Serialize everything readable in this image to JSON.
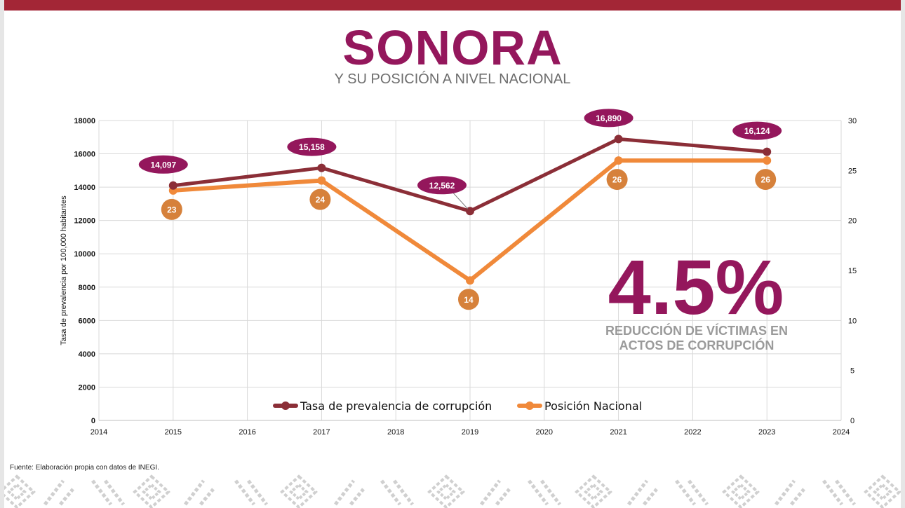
{
  "header": {
    "title": "SONORA",
    "subtitle": "Y SU POSICIÓN A NIVEL NACIONAL"
  },
  "colors": {
    "top_bar": "#a32636",
    "title": "#94175c",
    "prevalence_line": "#8b2e37",
    "position_line": "#f0893a",
    "prevalence_badge": "#94175c",
    "position_badge": "#d6813b",
    "highlight_number": "#94175c",
    "highlight_text": "#9a9a9a"
  },
  "highlight": {
    "value": "4.5%",
    "caption_line1": "REDUCCIÓN DE VÍCTIMAS EN",
    "caption_line2": "ACTOS DE CORRUPCIÓN"
  },
  "footer": {
    "source": "Fuente: Elaboración propia con datos de INEGI."
  },
  "chart_data": {
    "type": "line",
    "title": "",
    "xlabel": "",
    "ylabel": "Tasa de prevalencia por 100,000 habitantes",
    "x": [
      2015,
      2017,
      2019,
      2021,
      2023
    ],
    "xlim": [
      2014,
      2024
    ],
    "x_ticks": [
      "2014",
      "2015",
      "2016",
      "2017",
      "2018",
      "2019",
      "2020",
      "2021",
      "2022",
      "2023",
      "2024"
    ],
    "ylim": [
      0,
      18000
    ],
    "y_ticks": [
      "0",
      "2000",
      "4000",
      "6000",
      "8000",
      "10000",
      "12000",
      "14000",
      "16000",
      "18000"
    ],
    "y2lim": [
      0,
      30
    ],
    "y2_ticks": [
      "0",
      "5",
      "10",
      "15",
      "20",
      "25",
      "30"
    ],
    "grid": true,
    "legend_position": "bottom-center",
    "series": [
      {
        "name": "Tasa de prevalencia de corrupción",
        "axis": "left",
        "values": [
          14097,
          15158,
          12562,
          16890,
          16124
        ],
        "labels": [
          "14,097",
          "15,158",
          "12,562",
          "16,890",
          "16,124"
        ]
      },
      {
        "name": "Posición Nacional",
        "axis": "right",
        "values": [
          23,
          24,
          14,
          26,
          26
        ],
        "labels": [
          "23",
          "24",
          "14",
          "26",
          "26"
        ]
      }
    ]
  }
}
